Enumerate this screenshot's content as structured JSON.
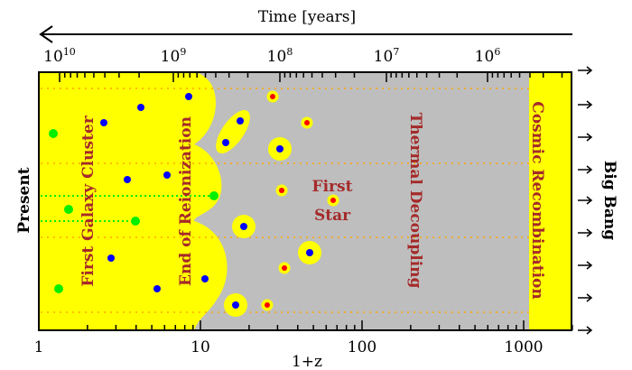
{
  "top_axis": {
    "title": "Time [years]",
    "tick_labels": [
      "10",
      "10",
      "10",
      "10",
      "10"
    ],
    "tick_exponents": [
      "10",
      "9",
      "8",
      "7",
      "6"
    ]
  },
  "bottom_axis": {
    "title": "1+z",
    "tick_labels": [
      "1",
      "10",
      "100",
      "1000"
    ]
  },
  "left_label": "Present",
  "right_label": "Big Bang",
  "regions": {
    "first_galaxy_cluster": "First Galaxy Cluster",
    "end_of_reionization": "End of Reionization",
    "thermal_decoupling": "Thermal Decoupling",
    "cosmic_recombination": "Cosmic Recombination",
    "first_star_line1": "First",
    "first_star_line2": "Star"
  },
  "colors": {
    "ionized": "#ffff00",
    "neutral": "#bebebe",
    "galaxy": "#0000ff",
    "star": "#ff0000",
    "cluster": "#00ee00",
    "text": "#a52a2a",
    "grid": "#ffa500"
  }
}
